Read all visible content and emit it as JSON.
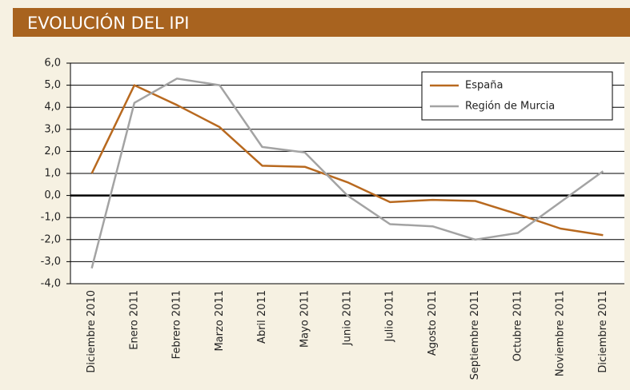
{
  "chart_data": {
    "type": "line",
    "title": "EVOLUCIÓN DEL IPI",
    "categories": [
      "Diciembre 2010",
      "Enero 2011",
      "Febrero 2011",
      "Marzo 2011",
      "Abril 2011",
      "Mayo 2011",
      "Junio 2011",
      "Julio 2011",
      "Agosto 2011",
      "Septiembre 2011",
      "Octubre 2011",
      "Noviembre 2011",
      "Diciembre 2011"
    ],
    "series": [
      {
        "name": "España",
        "color": "#b8691f",
        "values": [
          1.0,
          5.0,
          4.1,
          3.1,
          1.35,
          1.3,
          0.6,
          -0.3,
          -0.2,
          -0.25,
          -0.85,
          -1.5,
          -1.8
        ]
      },
      {
        "name": "Región de Murcia",
        "color": "#a3a3a3",
        "values": [
          -3.3,
          4.2,
          5.3,
          5.0,
          2.2,
          1.95,
          0.0,
          -1.3,
          -1.4,
          -2.0,
          -1.7,
          -0.3,
          1.1
        ]
      }
    ],
    "ylim": [
      -4,
      6
    ],
    "yticks": [
      {
        "value": -4,
        "label": "-4,0"
      },
      {
        "value": -3,
        "label": "-3,0"
      },
      {
        "value": -2,
        "label": "-2,0"
      },
      {
        "value": -1,
        "label": "-1,0"
      },
      {
        "value": 0,
        "label": "0,0"
      },
      {
        "value": 1,
        "label": "1,0"
      },
      {
        "value": 2,
        "label": "2,0"
      },
      {
        "value": 3,
        "label": "3,0"
      },
      {
        "value": 4,
        "label": "4,0"
      },
      {
        "value": 5,
        "label": "5,0"
      },
      {
        "value": 6,
        "label": "6,0"
      }
    ],
    "grid": true,
    "legend": "upper right"
  }
}
